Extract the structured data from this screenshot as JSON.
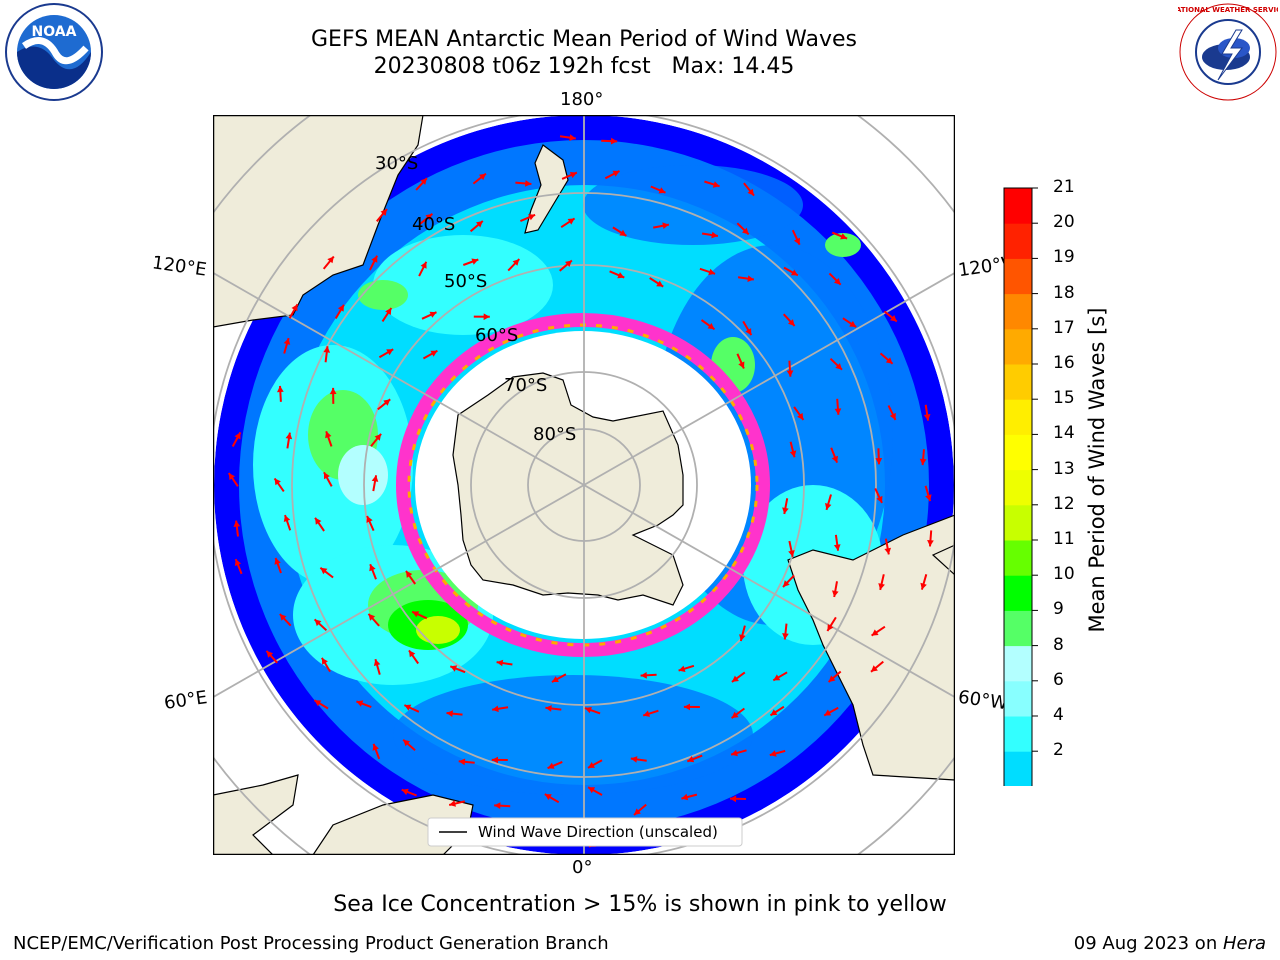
{
  "title": {
    "line1": "GEFS MEAN Antarctic Mean Period of Wind Waves",
    "line2": "20230808 t06z 192h fcst   Max: 14.45"
  },
  "map": {
    "projection": "south-polar-stereographic",
    "longitude_labels": {
      "top": "180°",
      "bottom": "0°",
      "left_upper": "120°E",
      "left_lower": "60°E",
      "right_upper": "120°W",
      "right_lower": "60°W"
    },
    "latitude_labels": [
      "30°S",
      "40°S",
      "50°S",
      "60°S",
      "70°S",
      "80°S"
    ],
    "legend_label": "Wind Wave Direction (unscaled)",
    "arrow_color": "#ff0000",
    "land_color": "#efecda",
    "sea_ice_colors": [
      "#ff33cc",
      "#ffaa00",
      "#ffff00"
    ]
  },
  "colorbar": {
    "label": "Mean Period of Wind Waves [s]",
    "ticks": [
      "21",
      "20",
      "19",
      "18",
      "17",
      "16",
      "15",
      "14",
      "13",
      "12",
      "11",
      "10",
      "9",
      "8",
      "6",
      "4",
      "2"
    ],
    "colors": [
      "#0000ff",
      "#0077ff",
      "#00ddff",
      "#33ffff",
      "#88ffff",
      "#b3ffff",
      "#55ff66",
      "#00ff00",
      "#66ff00",
      "#c8ff00",
      "#eeff00",
      "#ffff00",
      "#ffee00",
      "#ffcc00",
      "#ffaa00",
      "#ff8800",
      "#ff5500",
      "#ff2200",
      "#ff0000"
    ]
  },
  "note": "Sea Ice Concentration > 15% is shown in pink to yellow",
  "footer": {
    "left": "NCEP/EMC/Verification Post Processing Product Generation Branch",
    "right_date": "09 Aug 2023 on ",
    "right_machine": "Hera"
  },
  "logos": {
    "left": "NOAA",
    "right": "NATIONAL WEATHER SERVICE"
  }
}
